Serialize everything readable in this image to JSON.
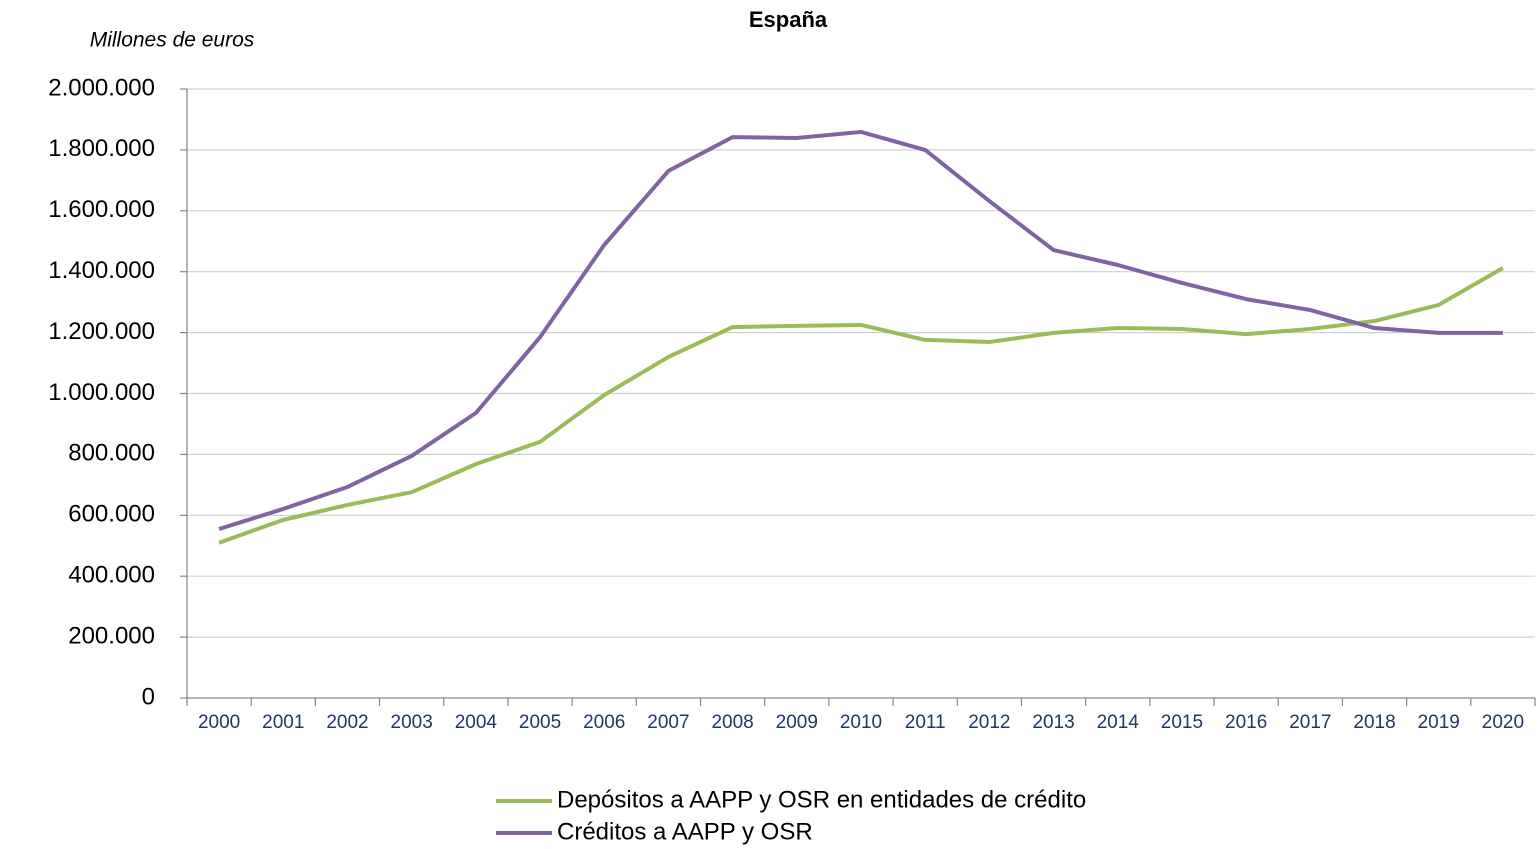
{
  "chart_data": {
    "type": "line",
    "title": "España",
    "subtitle": "Millones de euros",
    "categories": [
      "2000",
      "2001",
      "2002",
      "2003",
      "2004",
      "2005",
      "2006",
      "2007",
      "2008",
      "2009",
      "2010",
      "2011",
      "2012",
      "2013",
      "2014",
      "2015",
      "2016",
      "2017",
      "2018",
      "2019",
      "2020"
    ],
    "series": [
      {
        "name": "Depósitos a AAPP y OSR en entidades de crédito",
        "color": "#9bbb59",
        "values": [
          510000,
          585000,
          634000,
          676000,
          768000,
          841000,
          995000,
          1120000,
          1218000,
          1222000,
          1225000,
          1176000,
          1169000,
          1199000,
          1215000,
          1212000,
          1195000,
          1212000,
          1238000,
          1291000,
          1412000
        ]
      },
      {
        "name": "Créditos a AAPP y OSR",
        "color": "#8064a2",
        "values": [
          555000,
          621000,
          693000,
          795000,
          936000,
          1185000,
          1488000,
          1731000,
          1842000,
          1839000,
          1859000,
          1800000,
          1632000,
          1471000,
          1422000,
          1363000,
          1310000,
          1274000,
          1215000,
          1199000,
          1199000
        ]
      }
    ],
    "ylim": [
      0,
      2000000
    ],
    "yticks": [
      0,
      {
        "value": 200000,
        "label": "200.000"
      },
      {
        "value": 400000,
        "label": "400.000"
      },
      {
        "value": 600000,
        "label": "600.000"
      },
      {
        "value": 800000,
        "label": "800.000"
      },
      {
        "value": 1000000,
        "label": "1.000.000"
      },
      {
        "value": 1200000,
        "label": "1.200.000"
      },
      {
        "value": 1400000,
        "label": "1.400.000"
      },
      {
        "value": 1600000,
        "label": "1.600.000"
      },
      {
        "value": 1800000,
        "label": "1.800.000"
      },
      {
        "value": 2000000,
        "label": "2.000.000"
      }
    ],
    "grid": true,
    "legend": "bottom"
  }
}
